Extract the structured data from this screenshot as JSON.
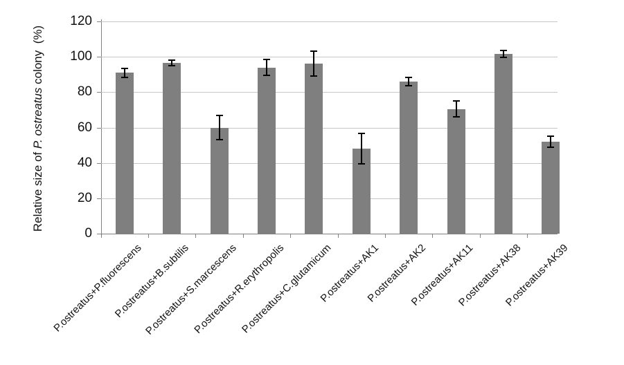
{
  "chart_data": {
    "type": "bar",
    "title": "",
    "ylabel_text": "Relative size of P. ostreatus colony (%)",
    "ylabel_parts": {
      "prefix": "Relative size of ",
      "italic": "P. ostreatus",
      "suffix": " colony  (%)"
    },
    "categories": [
      "P.ostreatus+P.fluorescens",
      "P.ostreatus+B.subtilis",
      "P.ostreatus+S.marcescens",
      "P.ostreatus+R.erythropolis",
      "P.ostreatus+C.glutamicum",
      "P.ostreatus+AK1",
      "P.ostreatus+AK2",
      "P.ostreatus+AK11",
      "P.ostreatus+AK38",
      "P.ostreatus+AK39"
    ],
    "values": [
      91,
      96.5,
      60,
      94,
      96,
      48,
      86,
      70.5,
      101.5,
      52
    ],
    "errors": [
      2.5,
      1.5,
      7,
      4.5,
      7,
      8.5,
      2.5,
      4.5,
      2,
      3
    ],
    "yticks": [
      0,
      20,
      40,
      60,
      80,
      100,
      120
    ],
    "ylim": [
      0,
      120
    ],
    "grid": "horizontal",
    "legend": "none",
    "bar_color": "#7f7f7f",
    "gridline_color": "#c6c6c6",
    "axis_color": "#808080",
    "error_bar_color": "#000000",
    "background": "#ffffff"
  }
}
